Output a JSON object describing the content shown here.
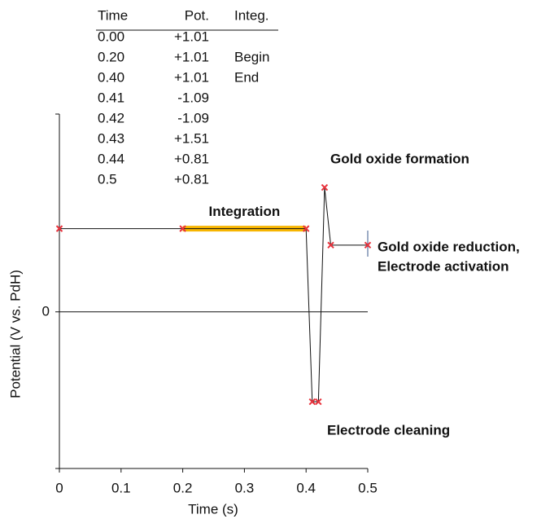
{
  "table": {
    "columns": [
      "Time",
      "Pot.",
      "Integ."
    ],
    "rows": [
      [
        "0.00",
        "+1.01",
        ""
      ],
      [
        "0.20",
        "+1.01",
        "Begin"
      ],
      [
        "0.40",
        "+1.01",
        "End"
      ],
      [
        "0.41",
        "-1.09",
        ""
      ],
      [
        "0.42",
        "-1.09",
        ""
      ],
      [
        "0.43",
        "+1.51",
        ""
      ],
      [
        "0.44",
        "+0.81",
        ""
      ],
      [
        "0.5",
        "+0.81",
        ""
      ]
    ]
  },
  "chart_data": {
    "type": "line",
    "x_label": "Time (s)",
    "y_label": "Potential (V vs. PdH)",
    "x": [
      0,
      0.2,
      0.4,
      0.41,
      0.42,
      0.43,
      0.44,
      0.5
    ],
    "values": [
      1.01,
      1.01,
      1.01,
      -1.09,
      -1.09,
      1.51,
      0.81,
      0.81
    ],
    "color": "#111111",
    "marker_color": "#e8323c",
    "xlim": [
      0,
      0.5
    ],
    "xticks": [
      0,
      0.1,
      0.2,
      0.3,
      0.4,
      0.5
    ],
    "ylim": [
      -1.9,
      2.4
    ],
    "yticks": [
      0
    ],
    "highlight": {
      "label": "Integration",
      "xrange": [
        0.2,
        0.4
      ],
      "y": 1.01,
      "color": "#f7b500"
    },
    "annotations": [
      "Gold oxide formation",
      "Gold oxide reduction,",
      "Electrode activation",
      "Electrode cleaning"
    ]
  }
}
